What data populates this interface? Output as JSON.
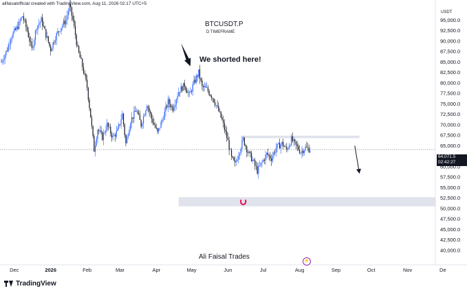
{
  "header": {
    "caption": "alifaisalofficial created with TradingView.com, Aug 11, 2026 02:17 UTC+5"
  },
  "brand": {
    "name": "TradingView",
    "icon": "tradingview-logo-icon"
  },
  "currency_label": "USDT",
  "price_tag": {
    "price": "64,071.5",
    "countdown": "02:42:27"
  },
  "colors": {
    "up": "#2962ff",
    "down": "#131722",
    "zone": "#e0e3eb",
    "magnet": "#e91e63",
    "bolt": "#9c27b0"
  },
  "chart_data": {
    "type": "candlestick",
    "title": "BTCUSDT.P",
    "subtitle": "D TIMEFRAME",
    "watermark": "Ali Faisal Trades",
    "annotation": "We shorted here!",
    "ylim": [
      37500,
      99000
    ],
    "y_ticks": [
      95000,
      92500,
      90000,
      87500,
      85000,
      82500,
      80000,
      77500,
      75000,
      72500,
      70000,
      67500,
      65000,
      62500,
      60000,
      57500,
      55000,
      52500,
      50000,
      47500,
      45000,
      42500,
      40000
    ],
    "y_tick_labels": [
      "95,000.0",
      "92,500.0",
      "90,000.0",
      "87,500.0",
      "85,000.0",
      "82,500.0",
      "80,000.0",
      "77,500.0",
      "75,000.0",
      "72,500.0",
      "70,000.0",
      "67,500.0",
      "65,000.0",
      "62,500.0",
      "60,000.0",
      "57,500.0",
      "55,000.0",
      "52,500.0",
      "50,000.0",
      "47,500.0",
      "45,000.0",
      "42,500.0",
      "40,000.0"
    ],
    "x_start": "2025-11-20",
    "x_ticks": [
      {
        "label": "Dec",
        "date": "2025-12-01"
      },
      {
        "label": "2026",
        "date": "2026-01-01",
        "bold": true
      },
      {
        "label": "Feb",
        "date": "2026-02-01"
      },
      {
        "label": "Mar",
        "date": "2026-03-01"
      },
      {
        "label": "Apr",
        "date": "2026-04-01"
      },
      {
        "label": "May",
        "date": "2026-05-01"
      },
      {
        "label": "Jun",
        "date": "2026-06-01"
      },
      {
        "label": "Jul",
        "date": "2026-07-01"
      },
      {
        "label": "Aug",
        "date": "2026-08-01"
      },
      {
        "label": "Sep",
        "date": "2026-09-01"
      },
      {
        "label": "Oct",
        "date": "2026-10-01"
      },
      {
        "label": "Nov",
        "date": "2026-11-01"
      },
      {
        "label": "De",
        "date": "2026-12-01"
      }
    ],
    "price_path": [
      {
        "date": "2025-11-20",
        "price": 85000
      },
      {
        "date": "2025-11-25",
        "price": 88000
      },
      {
        "date": "2025-11-28",
        "price": 91000
      },
      {
        "date": "2025-12-03",
        "price": 93000
      },
      {
        "date": "2025-12-08",
        "price": 96000
      },
      {
        "date": "2025-12-12",
        "price": 92500
      },
      {
        "date": "2025-12-16",
        "price": 88000
      },
      {
        "date": "2025-12-20",
        "price": 93500
      },
      {
        "date": "2025-12-24",
        "price": 95000
      },
      {
        "date": "2025-12-28",
        "price": 91500
      },
      {
        "date": "2026-01-01",
        "price": 88000
      },
      {
        "date": "2026-01-05",
        "price": 91000
      },
      {
        "date": "2026-01-10",
        "price": 93500
      },
      {
        "date": "2026-01-14",
        "price": 95000
      },
      {
        "date": "2026-01-17",
        "price": 98500
      },
      {
        "date": "2026-01-20",
        "price": 95000
      },
      {
        "date": "2026-01-24",
        "price": 88000
      },
      {
        "date": "2026-01-28",
        "price": 84000
      },
      {
        "date": "2026-02-01",
        "price": 79000
      },
      {
        "date": "2026-02-04",
        "price": 72000
      },
      {
        "date": "2026-02-07",
        "price": 64000
      },
      {
        "date": "2026-02-10",
        "price": 69000
      },
      {
        "date": "2026-02-14",
        "price": 67000
      },
      {
        "date": "2026-02-18",
        "price": 70000
      },
      {
        "date": "2026-02-23",
        "price": 67000
      },
      {
        "date": "2026-02-27",
        "price": 68500
      },
      {
        "date": "2026-03-03",
        "price": 72500
      },
      {
        "date": "2026-03-06",
        "price": 65500
      },
      {
        "date": "2026-03-10",
        "price": 71000
      },
      {
        "date": "2026-03-15",
        "price": 73500
      },
      {
        "date": "2026-03-19",
        "price": 70000
      },
      {
        "date": "2026-03-24",
        "price": 75000
      },
      {
        "date": "2026-03-28",
        "price": 71500
      },
      {
        "date": "2026-04-02",
        "price": 68000
      },
      {
        "date": "2026-04-07",
        "price": 72000
      },
      {
        "date": "2026-04-11",
        "price": 75500
      },
      {
        "date": "2026-04-15",
        "price": 74000
      },
      {
        "date": "2026-04-20",
        "price": 78000
      },
      {
        "date": "2026-04-25",
        "price": 79500
      },
      {
        "date": "2026-04-29",
        "price": 77000
      },
      {
        "date": "2026-05-03",
        "price": 80000
      },
      {
        "date": "2026-05-07",
        "price": 82500
      },
      {
        "date": "2026-05-10",
        "price": 79000
      },
      {
        "date": "2026-05-14",
        "price": 78500
      },
      {
        "date": "2026-05-19",
        "price": 76500
      },
      {
        "date": "2026-05-23",
        "price": 74000
      },
      {
        "date": "2026-05-27",
        "price": 71000
      },
      {
        "date": "2026-06-01",
        "price": 66000
      },
      {
        "date": "2026-06-04",
        "price": 62000
      },
      {
        "date": "2026-06-07",
        "price": 60500
      },
      {
        "date": "2026-06-11",
        "price": 64000
      },
      {
        "date": "2026-06-14",
        "price": 66500
      },
      {
        "date": "2026-06-18",
        "price": 63500
      },
      {
        "date": "2026-06-22",
        "price": 61500
      },
      {
        "date": "2026-06-26",
        "price": 59000
      },
      {
        "date": "2026-06-30",
        "price": 61000
      },
      {
        "date": "2026-07-04",
        "price": 63000
      },
      {
        "date": "2026-07-08",
        "price": 62000
      },
      {
        "date": "2026-07-12",
        "price": 64500
      },
      {
        "date": "2026-07-17",
        "price": 65500
      },
      {
        "date": "2026-07-21",
        "price": 64000
      },
      {
        "date": "2026-07-25",
        "price": 66500
      },
      {
        "date": "2026-07-29",
        "price": 65000
      },
      {
        "date": "2026-08-02",
        "price": 63500
      },
      {
        "date": "2026-08-06",
        "price": 64500
      },
      {
        "date": "2026-08-10",
        "price": 64071.5
      }
    ],
    "zones": [
      {
        "name": "resistance",
        "from_date": "2026-06-12",
        "to_date": "2026-09-21",
        "low": 66800,
        "high": 67400
      },
      {
        "name": "target",
        "from_date": "2026-04-20",
        "to_date": "2026-11-25",
        "low": 50500,
        "high": 52700
      }
    ],
    "current_price": 64071.5,
    "arrows": [
      {
        "name": "short-arrow",
        "from_date": "2026-04-22",
        "from_price": 89500,
        "to_date": "2026-04-30",
        "to_price": 84000
      },
      {
        "name": "down-projection-arrow",
        "from_date": "2026-09-17",
        "from_price": 65000,
        "to_date": "2026-09-21",
        "to_price": 58300
      }
    ],
    "magnet_icon": {
      "name": "magnet-icon",
      "date": "2026-06-14",
      "price": 51600
    },
    "grid": false
  }
}
